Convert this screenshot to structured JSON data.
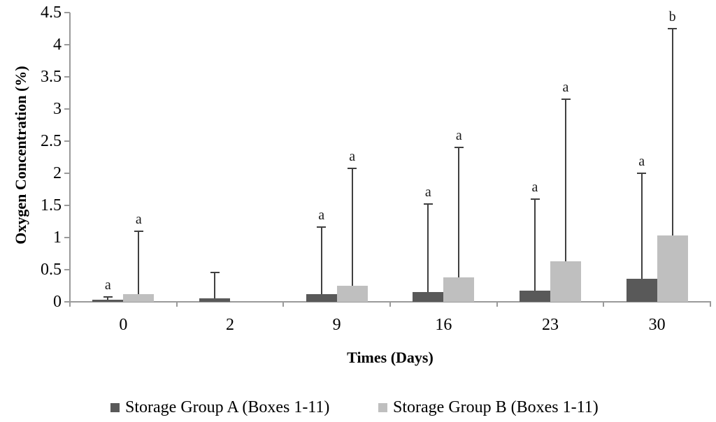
{
  "figure": {
    "background": "#ffffff"
  },
  "chart_data": {
    "type": "bar",
    "title": "",
    "xlabel": "Times (Days)",
    "ylabel": "Oxygen Concentration (%)",
    "categories": [
      "0",
      "2",
      "9",
      "16",
      "23",
      "30"
    ],
    "series": [
      {
        "name": "Storage Group A (Boxes 1-11)",
        "color": "#595959",
        "values": [
          0.03,
          0.05,
          0.12,
          0.15,
          0.17,
          0.36
        ],
        "error_top": [
          0.08,
          0.46,
          1.16,
          1.52,
          1.6,
          2.0
        ],
        "letters": [
          "a",
          "",
          "a",
          "a",
          "a",
          "a"
        ]
      },
      {
        "name": "Storage Group B (Boxes 1-11)",
        "color": "#bfbfbf",
        "values": [
          0.12,
          0,
          0.25,
          0.38,
          0.63,
          1.03
        ],
        "error_top": [
          1.1,
          null,
          2.08,
          2.4,
          3.15,
          4.25
        ],
        "letters": [
          "a",
          "",
          "a",
          "a",
          "a",
          "b"
        ]
      }
    ],
    "ylim": [
      0,
      4.5
    ],
    "ytick_step": 0.5,
    "grid": false,
    "legend_position": "bottom",
    "error_bars": "upper-only",
    "axis_color": "#9a9a9a",
    "error_bar_color": "#404040"
  }
}
